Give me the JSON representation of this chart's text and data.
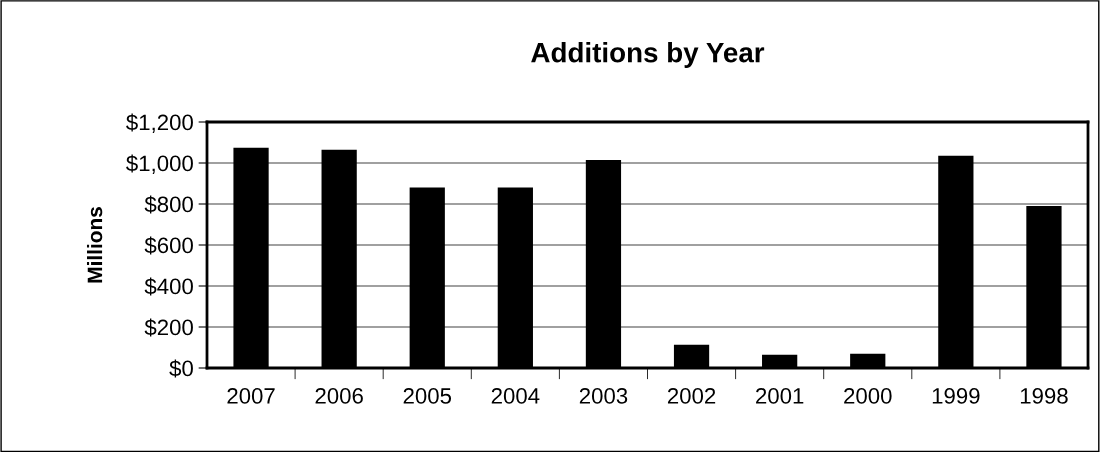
{
  "chart_data": {
    "type": "bar",
    "title": "Additions by Year",
    "ylabel": "Millions",
    "categories": [
      "2007",
      "2006",
      "2005",
      "2004",
      "2003",
      "2002",
      "2001",
      "2000",
      "1999",
      "1998"
    ],
    "values": [
      1075,
      1065,
      880,
      880,
      1015,
      114,
      65,
      70,
      1035,
      790
    ],
    "color": "#000000",
    "ylim": [
      0,
      1200
    ],
    "yticks": [
      {
        "value": 0,
        "label": "$0"
      },
      {
        "value": 200,
        "label": "$200"
      },
      {
        "value": 400,
        "label": "$400"
      },
      {
        "value": 600,
        "label": "$600"
      },
      {
        "value": 800,
        "label": "$800"
      },
      {
        "value": 1000,
        "label": "$1,000"
      },
      {
        "value": 1200,
        "label": "$1,200"
      }
    ],
    "grid": "y"
  }
}
